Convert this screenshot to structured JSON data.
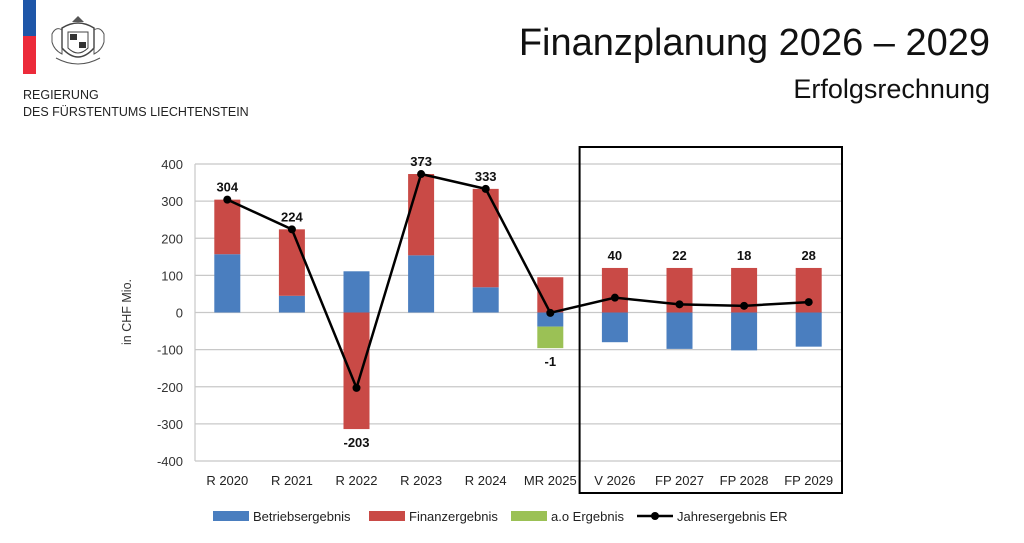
{
  "header": {
    "org_line1": "REGIERUNG",
    "org_line2": "DES FÜRSTENTUMS LIECHTENSTEIN",
    "title": "Finanzplanung 2026 – 2029",
    "subtitle": "Erfolgsrechnung"
  },
  "colors": {
    "betrieb": "#4a7ebf",
    "finanz": "#c94a46",
    "ao": "#9bc155",
    "line": "#000000",
    "flag_blue": "#1e56a8",
    "flag_red": "#ec2a3a"
  },
  "chart_data": {
    "type": "bar",
    "stacked": true,
    "ylabel": "in CHF Mio.",
    "ylim": [
      -400,
      400
    ],
    "yticks": [
      400,
      300,
      200,
      100,
      0,
      -100,
      -200,
      -300,
      -400
    ],
    "categories": [
      "R 2020",
      "R 2021",
      "R 2022",
      "R 2023",
      "R 2024",
      "MR 2025",
      "V 2026",
      "FP 2027",
      "FP 2028",
      "FP 2029"
    ],
    "highlight_categories": [
      "V 2026",
      "FP 2027",
      "FP 2028",
      "FP 2029"
    ],
    "series": [
      {
        "name": "Betriebsergebnis",
        "kind": "bar",
        "values": [
          157,
          45,
          111,
          154,
          68,
          -38,
          -80,
          -98,
          -102,
          -92
        ]
      },
      {
        "name": "Finanzergebnis",
        "kind": "bar",
        "values": [
          147,
          179,
          -314,
          219,
          265,
          95,
          120,
          120,
          120,
          120
        ]
      },
      {
        "name": "a.o Ergebnis",
        "kind": "bar",
        "values": [
          0,
          0,
          0,
          0,
          0,
          -58,
          0,
          0,
          0,
          0
        ]
      },
      {
        "name": "Jahresergebnis ER",
        "kind": "line",
        "values": [
          304,
          224,
          -203,
          373,
          333,
          -1,
          40,
          22,
          18,
          28
        ]
      }
    ],
    "data_labels": [
      "304",
      "224",
      "-203",
      "373",
      "333",
      "-1",
      "40",
      "22",
      "18",
      "28"
    ],
    "legend_position": "bottom",
    "grid": true
  }
}
